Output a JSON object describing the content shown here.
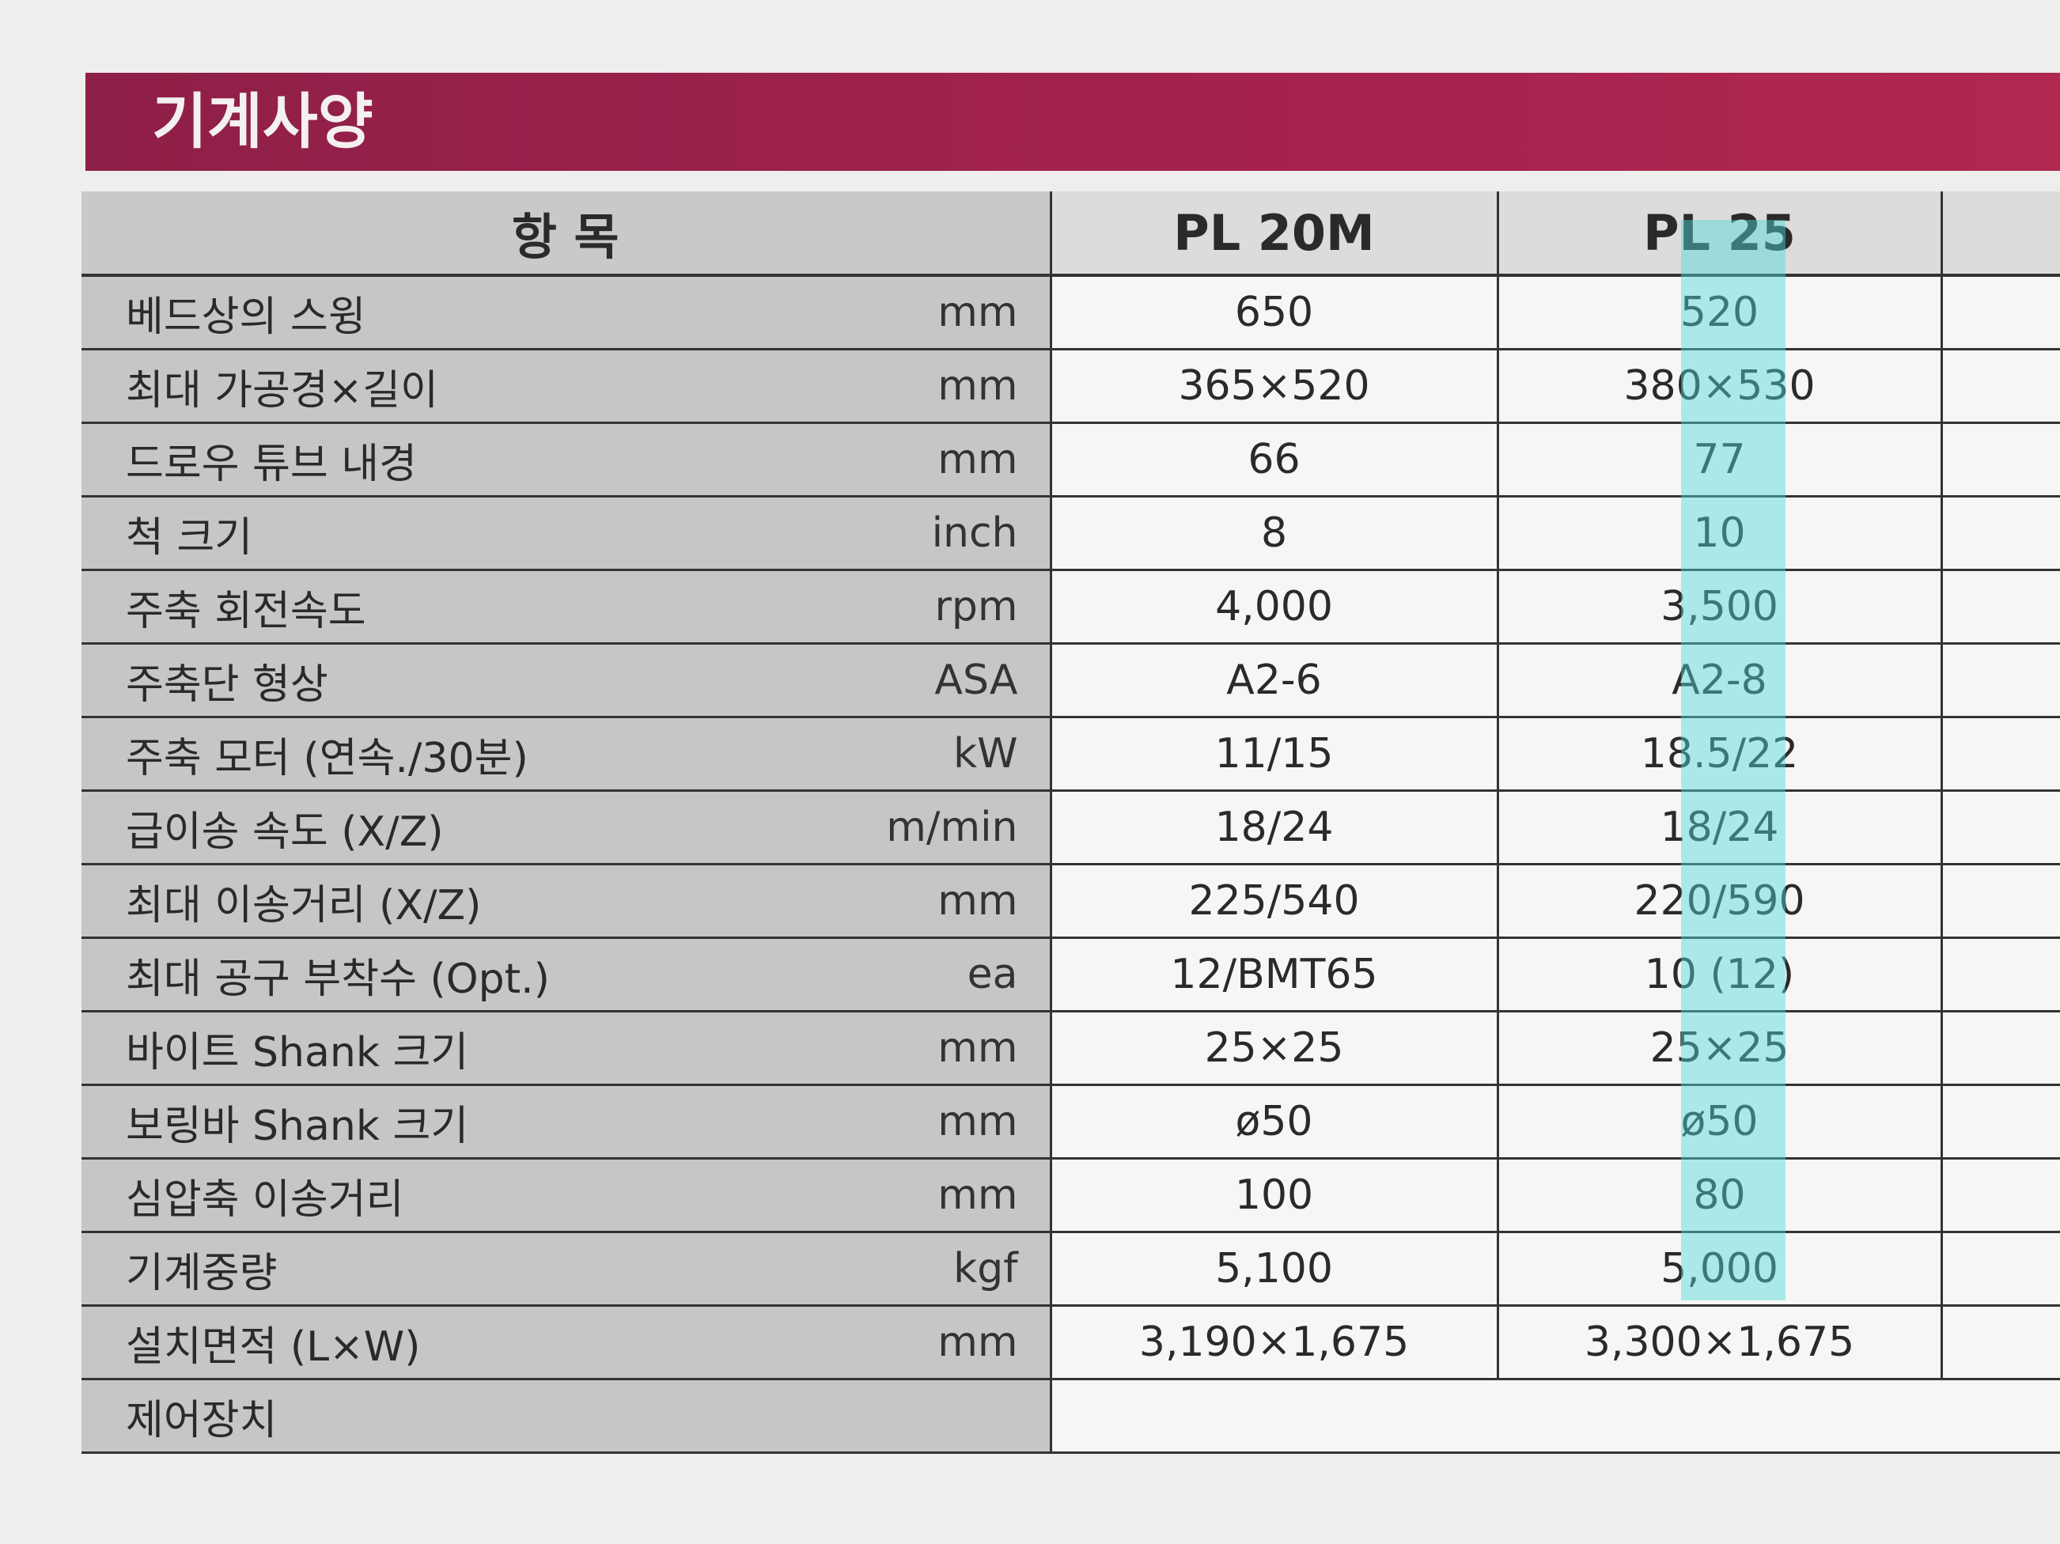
{
  "header": {
    "title": "기계사양"
  },
  "table": {
    "columns": [
      "항 목",
      "PL 20M",
      "PL 25"
    ],
    "rows": [
      [
        "베드상의 스윙",
        "mm",
        "650",
        "520"
      ],
      [
        "최대 가공경×길이",
        "mm",
        "365×520",
        "380×530"
      ],
      [
        "드로우 튜브 내경",
        "mm",
        "66",
        "77"
      ],
      [
        "척 크기",
        "inch",
        "8",
        "10"
      ],
      [
        "주축 회전속도",
        "rpm",
        "4,000",
        "3,500"
      ],
      [
        "주축단 형상",
        "ASA",
        "A2-6",
        "A2-8"
      ],
      [
        "주축 모터 (연속./30분)",
        "kW",
        "11/15",
        "18.5/22"
      ],
      [
        "급이송 속도 (X/Z)",
        "m/min",
        "18/24",
        "18/24"
      ],
      [
        "최대 이송거리 (X/Z)",
        "mm",
        "225/540",
        "220/590"
      ],
      [
        "최대 공구 부착수 (Opt.)",
        "ea",
        "12/BMT65",
        "10 (12)"
      ],
      [
        "바이트 Shank 크기",
        "mm",
        "25×25",
        "25×25"
      ],
      [
        "보링바 Shank 크기",
        "mm",
        "ø50",
        "ø50"
      ],
      [
        "심압축 이송거리",
        "mm",
        "100",
        "80"
      ],
      [
        "기계중량",
        "kgf",
        "5,100",
        "5,000"
      ],
      [
        "설치면적 (L×W)",
        "mm",
        "3,190×1,675",
        "3,300×1,675"
      ],
      [
        "제어장치"
      ]
    ]
  }
}
